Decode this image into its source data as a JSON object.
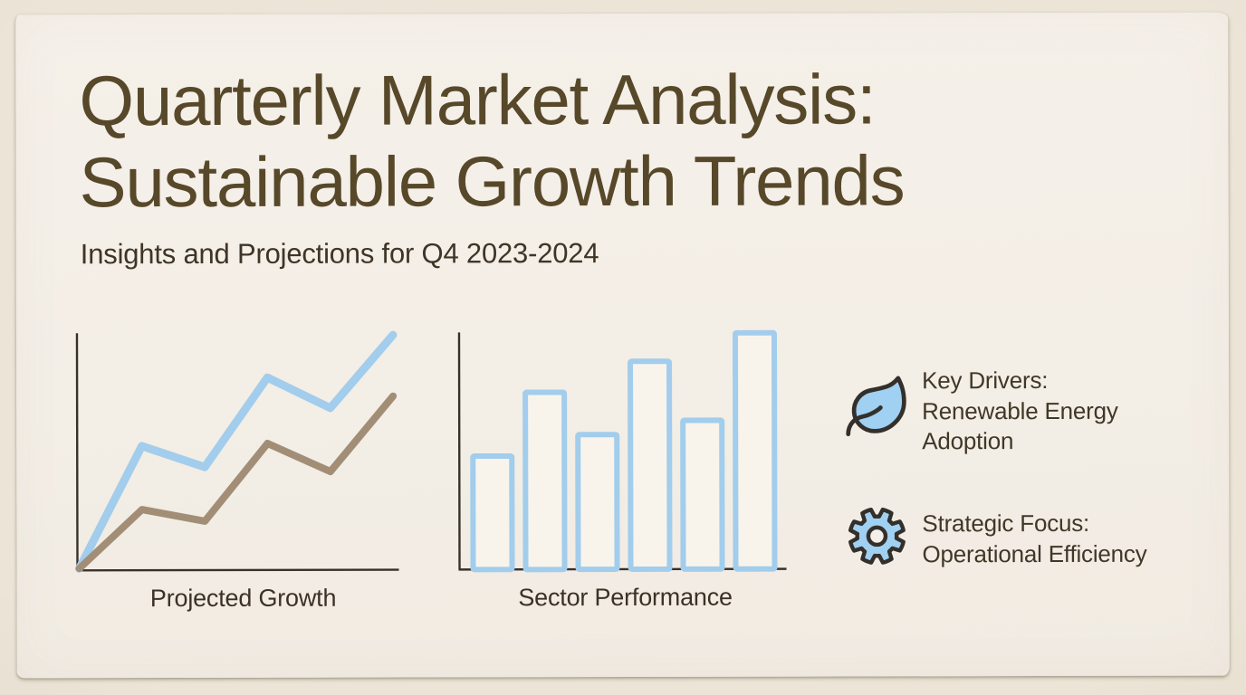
{
  "page": {
    "title": "Quarterly Market Analysis: Sustainable Growth Trends",
    "subtitle": "Insights and Projections for Q4 2023-2024"
  },
  "colors": {
    "background": "#e9e2d4",
    "paper": "#f4efe8",
    "title_text": "#57482a",
    "body_text": "#403727",
    "axis": "#37312a",
    "accent_blue": "#a2cdec",
    "accent_taupe": "#a28e76",
    "icon_outline": "#33302b",
    "icon_fill": "#a0d0f2",
    "bar_fill": "#f8f4ec"
  },
  "chart_data": [
    {
      "type": "line",
      "name": "projected-growth",
      "title": "Projected Growth",
      "x": [
        0,
        1,
        2,
        3,
        4,
        5
      ],
      "series": [
        {
          "name": "upper-trend",
          "color": "#a2cdec",
          "stroke_width": 9,
          "values": [
            0,
            52,
            43,
            81,
            68,
            99
          ]
        },
        {
          "name": "lower-trend",
          "color": "#a28e76",
          "stroke_width": 8,
          "values": [
            0,
            25,
            20,
            53,
            41,
            73
          ]
        }
      ],
      "ylim": [
        0,
        100
      ],
      "grid": false,
      "legend": "none",
      "axes": "plain L-shape, no ticks, no tick labels"
    },
    {
      "type": "bar",
      "name": "sector-performance",
      "title": "Sector Performance",
      "values": [
        48,
        75,
        57,
        88,
        63,
        100
      ],
      "ylim": [
        0,
        100
      ],
      "bar_style": "outlined",
      "color": "#a2cdec",
      "grid": false,
      "legend": "none",
      "axes": "plain L-shape, no ticks, no tick labels"
    }
  ],
  "insights": [
    {
      "icon": "leaf-icon",
      "lines": [
        "Key Drivers:",
        "Renewable Energy",
        "Adoption"
      ]
    },
    {
      "icon": "gear-icon",
      "lines": [
        "Strategic Focus:",
        "Operational Efficiency"
      ]
    }
  ]
}
